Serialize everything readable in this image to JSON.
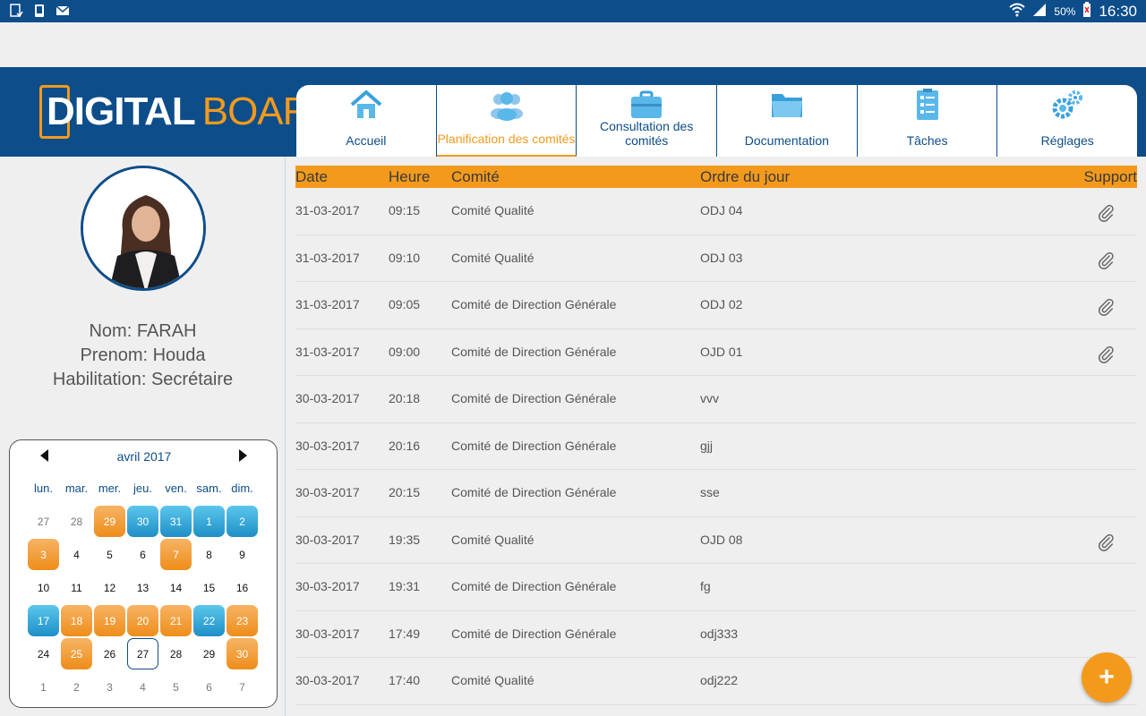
{
  "status_bar": {
    "battery": "50%",
    "time": "16:30"
  },
  "logo": {
    "part1": "DIGITAL",
    "part2": "BOARD"
  },
  "tabs": [
    {
      "label": "Accueil",
      "icon": "home-icon",
      "active": false
    },
    {
      "label": "Planification des comités",
      "icon": "users-icon",
      "active": true
    },
    {
      "label": "Consultation des comités",
      "icon": "briefcase-icon",
      "active": false
    },
    {
      "label": "Documentation",
      "icon": "folder-icon",
      "active": false
    },
    {
      "label": "Tâches",
      "icon": "clipboard-list-icon",
      "active": false
    },
    {
      "label": "Réglages",
      "icon": "gears-icon",
      "active": false
    }
  ],
  "profile": {
    "nom": "Nom: FARAH",
    "prenom": "Prenom: Houda",
    "habilitation": "Habilitation: Secrétaire"
  },
  "calendar": {
    "month": "avril 2017",
    "days_of_week": [
      "lun.",
      "mar.",
      "mer.",
      "jeu.",
      "ven.",
      "sam.",
      "dim."
    ],
    "weeks": [
      [
        {
          "d": "27",
          "s": "muted"
        },
        {
          "d": "28",
          "s": "muted"
        },
        {
          "d": "29",
          "s": "orange"
        },
        {
          "d": "30",
          "s": "blue"
        },
        {
          "d": "31",
          "s": "blue"
        },
        {
          "d": "1",
          "s": "blue"
        },
        {
          "d": "2",
          "s": "blue"
        }
      ],
      [
        {
          "d": "3",
          "s": "orange"
        },
        {
          "d": "4",
          "s": ""
        },
        {
          "d": "5",
          "s": ""
        },
        {
          "d": "6",
          "s": ""
        },
        {
          "d": "7",
          "s": "orange"
        },
        {
          "d": "8",
          "s": ""
        },
        {
          "d": "9",
          "s": ""
        }
      ],
      [
        {
          "d": "10",
          "s": ""
        },
        {
          "d": "11",
          "s": ""
        },
        {
          "d": "12",
          "s": ""
        },
        {
          "d": "13",
          "s": ""
        },
        {
          "d": "14",
          "s": ""
        },
        {
          "d": "15",
          "s": ""
        },
        {
          "d": "16",
          "s": ""
        }
      ],
      [
        {
          "d": "17",
          "s": "blue"
        },
        {
          "d": "18",
          "s": "orange"
        },
        {
          "d": "19",
          "s": "orange"
        },
        {
          "d": "20",
          "s": "orange"
        },
        {
          "d": "21",
          "s": "orange"
        },
        {
          "d": "22",
          "s": "blue"
        },
        {
          "d": "23",
          "s": "orange"
        }
      ],
      [
        {
          "d": "24",
          "s": ""
        },
        {
          "d": "25",
          "s": "orange"
        },
        {
          "d": "26",
          "s": ""
        },
        {
          "d": "27",
          "s": "today"
        },
        {
          "d": "28",
          "s": ""
        },
        {
          "d": "29",
          "s": ""
        },
        {
          "d": "30",
          "s": "orange"
        }
      ],
      [
        {
          "d": "1",
          "s": "muted"
        },
        {
          "d": "2",
          "s": "muted"
        },
        {
          "d": "3",
          "s": "muted"
        },
        {
          "d": "4",
          "s": "muted"
        },
        {
          "d": "5",
          "s": "muted"
        },
        {
          "d": "6",
          "s": "muted"
        },
        {
          "d": "7",
          "s": "muted"
        }
      ]
    ]
  },
  "table": {
    "headers": {
      "date": "Date",
      "heure": "Heure",
      "comite": "Comité",
      "odj": "Ordre du jour",
      "support": "Support"
    },
    "rows": [
      {
        "date": "31-03-2017",
        "heure": "09:15",
        "comite": "Comité Qualité",
        "odj": "ODJ 04",
        "support": true
      },
      {
        "date": "31-03-2017",
        "heure": "09:10",
        "comite": "Comité Qualité",
        "odj": "ODJ 03",
        "support": true
      },
      {
        "date": "31-03-2017",
        "heure": "09:05",
        "comite": "Comité de Direction Générale",
        "odj": "ODJ 02",
        "support": true
      },
      {
        "date": "31-03-2017",
        "heure": "09:00",
        "comite": "Comité de Direction Générale",
        "odj": "OJD 01",
        "support": true
      },
      {
        "date": "30-03-2017",
        "heure": "20:18",
        "comite": "Comité de Direction Générale",
        "odj": "vvv",
        "support": false
      },
      {
        "date": "30-03-2017",
        "heure": "20:16",
        "comite": "Comité de Direction Générale",
        "odj": "gjj",
        "support": false
      },
      {
        "date": "30-03-2017",
        "heure": "20:15",
        "comite": "Comité de Direction Générale",
        "odj": "sse",
        "support": false
      },
      {
        "date": "30-03-2017",
        "heure": "19:35",
        "comite": "Comité Qualité",
        "odj": "OJD 08",
        "support": true
      },
      {
        "date": "30-03-2017",
        "heure": "19:31",
        "comite": "Comité de Direction Générale",
        "odj": "fg",
        "support": false
      },
      {
        "date": "30-03-2017",
        "heure": "17:49",
        "comite": "Comité de Direction Générale",
        "odj": "odj333",
        "support": false
      },
      {
        "date": "30-03-2017",
        "heure": "17:40",
        "comite": "Comité Qualité",
        "odj": "odj222",
        "support": false
      }
    ]
  },
  "fab": {
    "label": "+"
  },
  "colors": {
    "primary": "#0d4d8a",
    "accent": "#f39a1d",
    "calendar_blue": "#1d8fc7"
  }
}
